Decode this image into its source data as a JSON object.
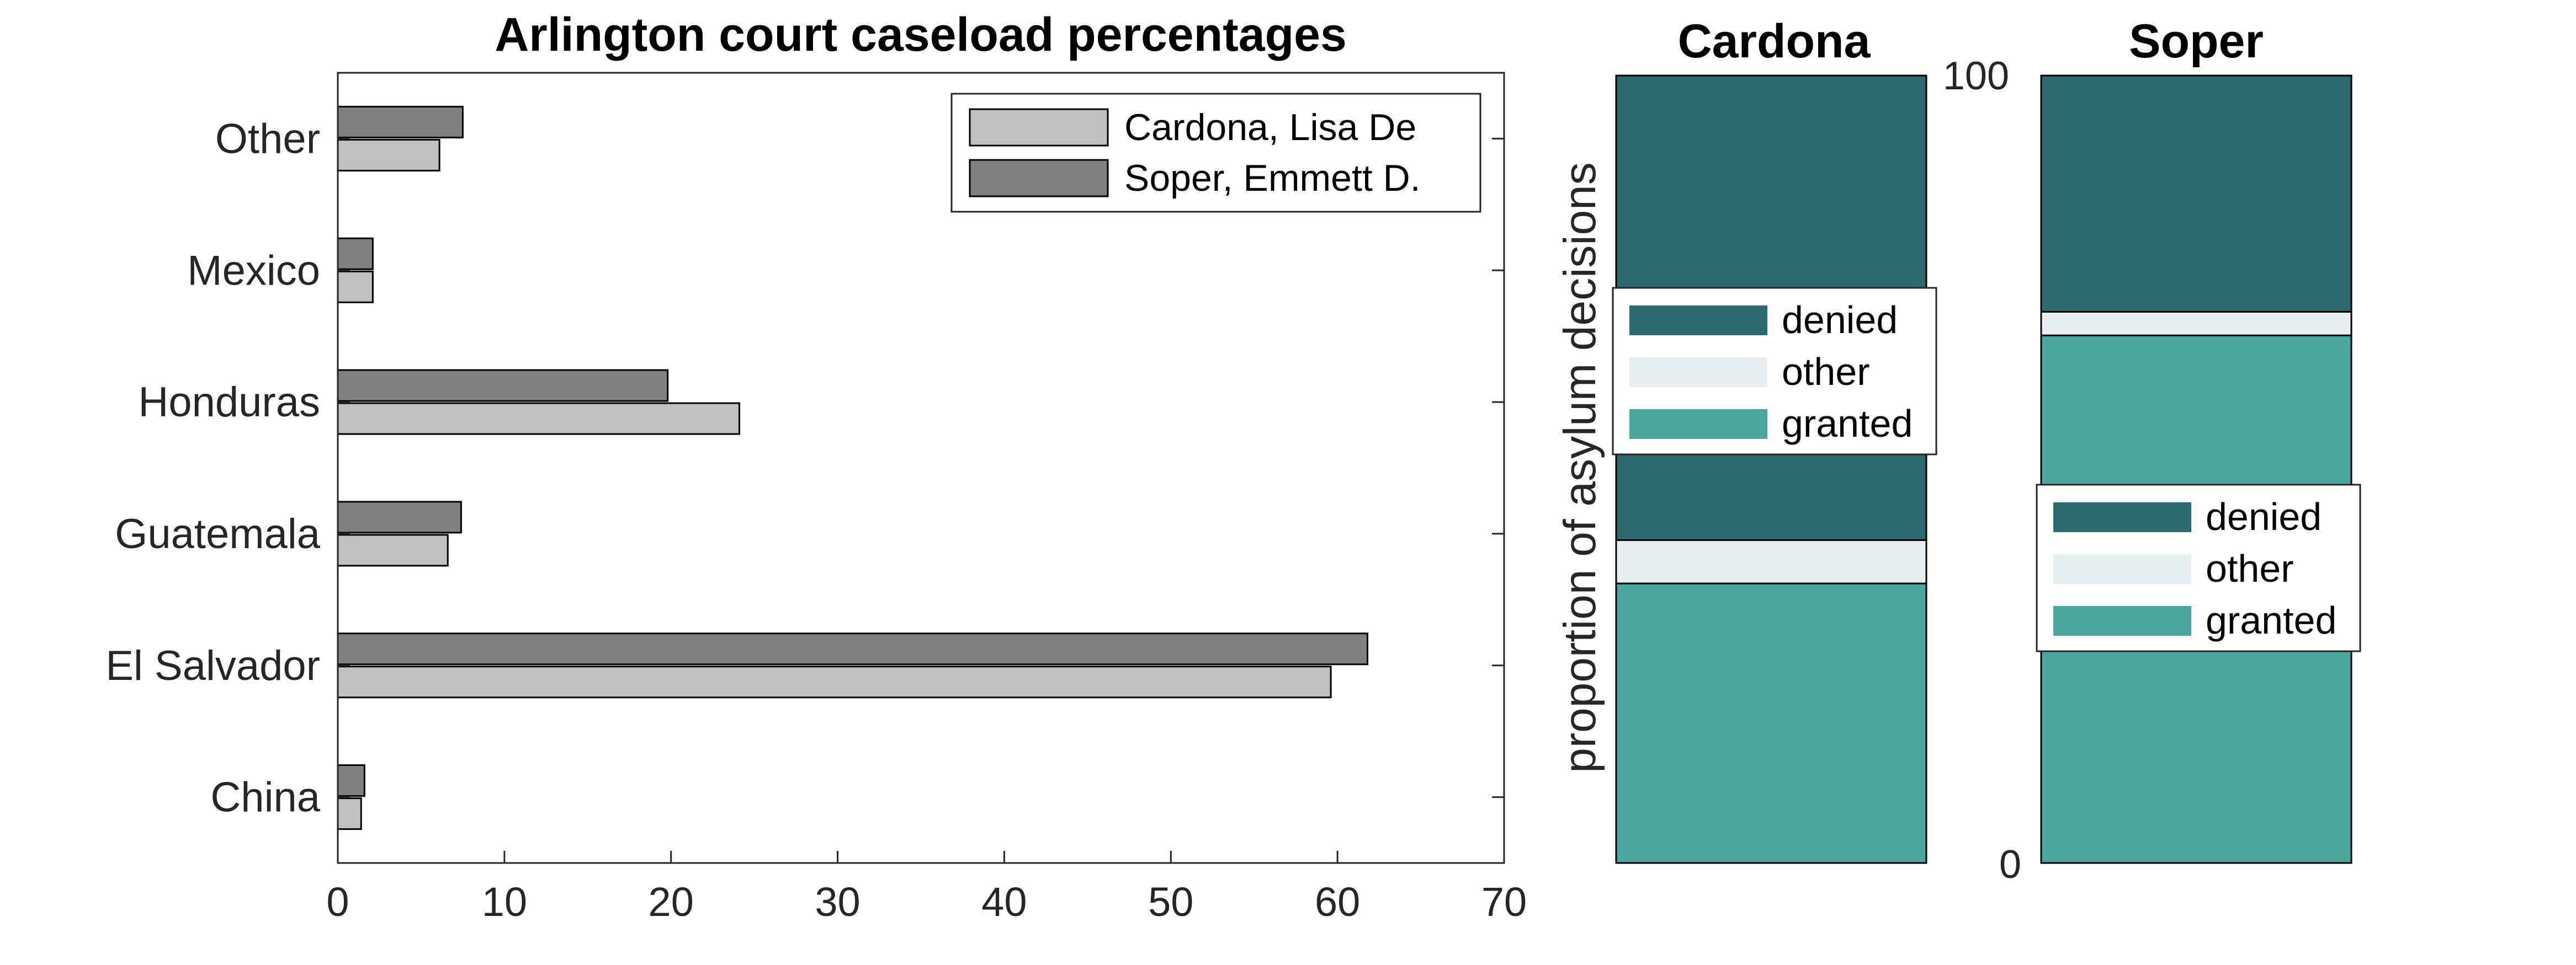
{
  "chart_data": [
    {
      "type": "bar",
      "orientation": "horizontal",
      "title": "Arlington court caseload percentages",
      "xlabel": "",
      "ylabel": "",
      "xlim": [
        0,
        70
      ],
      "x_ticks": [
        "0",
        "10",
        "20",
        "30",
        "40",
        "50",
        "60",
        "70"
      ],
      "categories": [
        "China",
        "El Salvador",
        "Guatemala",
        "Honduras",
        "Mexico",
        "Other"
      ],
      "series": [
        {
          "name": "Cardona, Lisa De",
          "color": "#c0c0c0",
          "values": [
            1.4,
            59.6,
            6.6,
            24.1,
            2.1,
            6.1
          ]
        },
        {
          "name": "Soper, Emmett D.",
          "color": "#808080",
          "values": [
            1.6,
            61.8,
            7.4,
            19.8,
            2.1,
            7.5
          ]
        }
      ],
      "legend": {
        "placement": "top-right"
      },
      "grid": false
    },
    {
      "type": "bar",
      "stacked": true,
      "title": "Cardona",
      "ylabel": "proportion of asylum decisions",
      "ylim": [
        0,
        100
      ],
      "segments": [
        {
          "name": "granted",
          "color": "#4aa69e",
          "value": 35.5
        },
        {
          "name": "other",
          "color": "#e7eff0",
          "value": 5.5
        },
        {
          "name": "denied",
          "color": "#2d6a70",
          "value": 59.0
        }
      ],
      "legend_order": [
        "denied",
        "other",
        "granted"
      ],
      "legend": {
        "placement": "upper-center"
      }
    },
    {
      "type": "bar",
      "stacked": true,
      "title": "Soper",
      "ylim": [
        0,
        100
      ],
      "y_ticks": [
        "0",
        "100"
      ],
      "segments": [
        {
          "name": "granted",
          "color": "#4aa69e",
          "value": 67.0
        },
        {
          "name": "other",
          "color": "#e7eff0",
          "value": 3.0
        },
        {
          "name": "denied",
          "color": "#2d6a70",
          "value": 30.0
        }
      ],
      "legend_order": [
        "denied",
        "other",
        "granted"
      ],
      "legend": {
        "placement": "middle-center"
      }
    }
  ]
}
